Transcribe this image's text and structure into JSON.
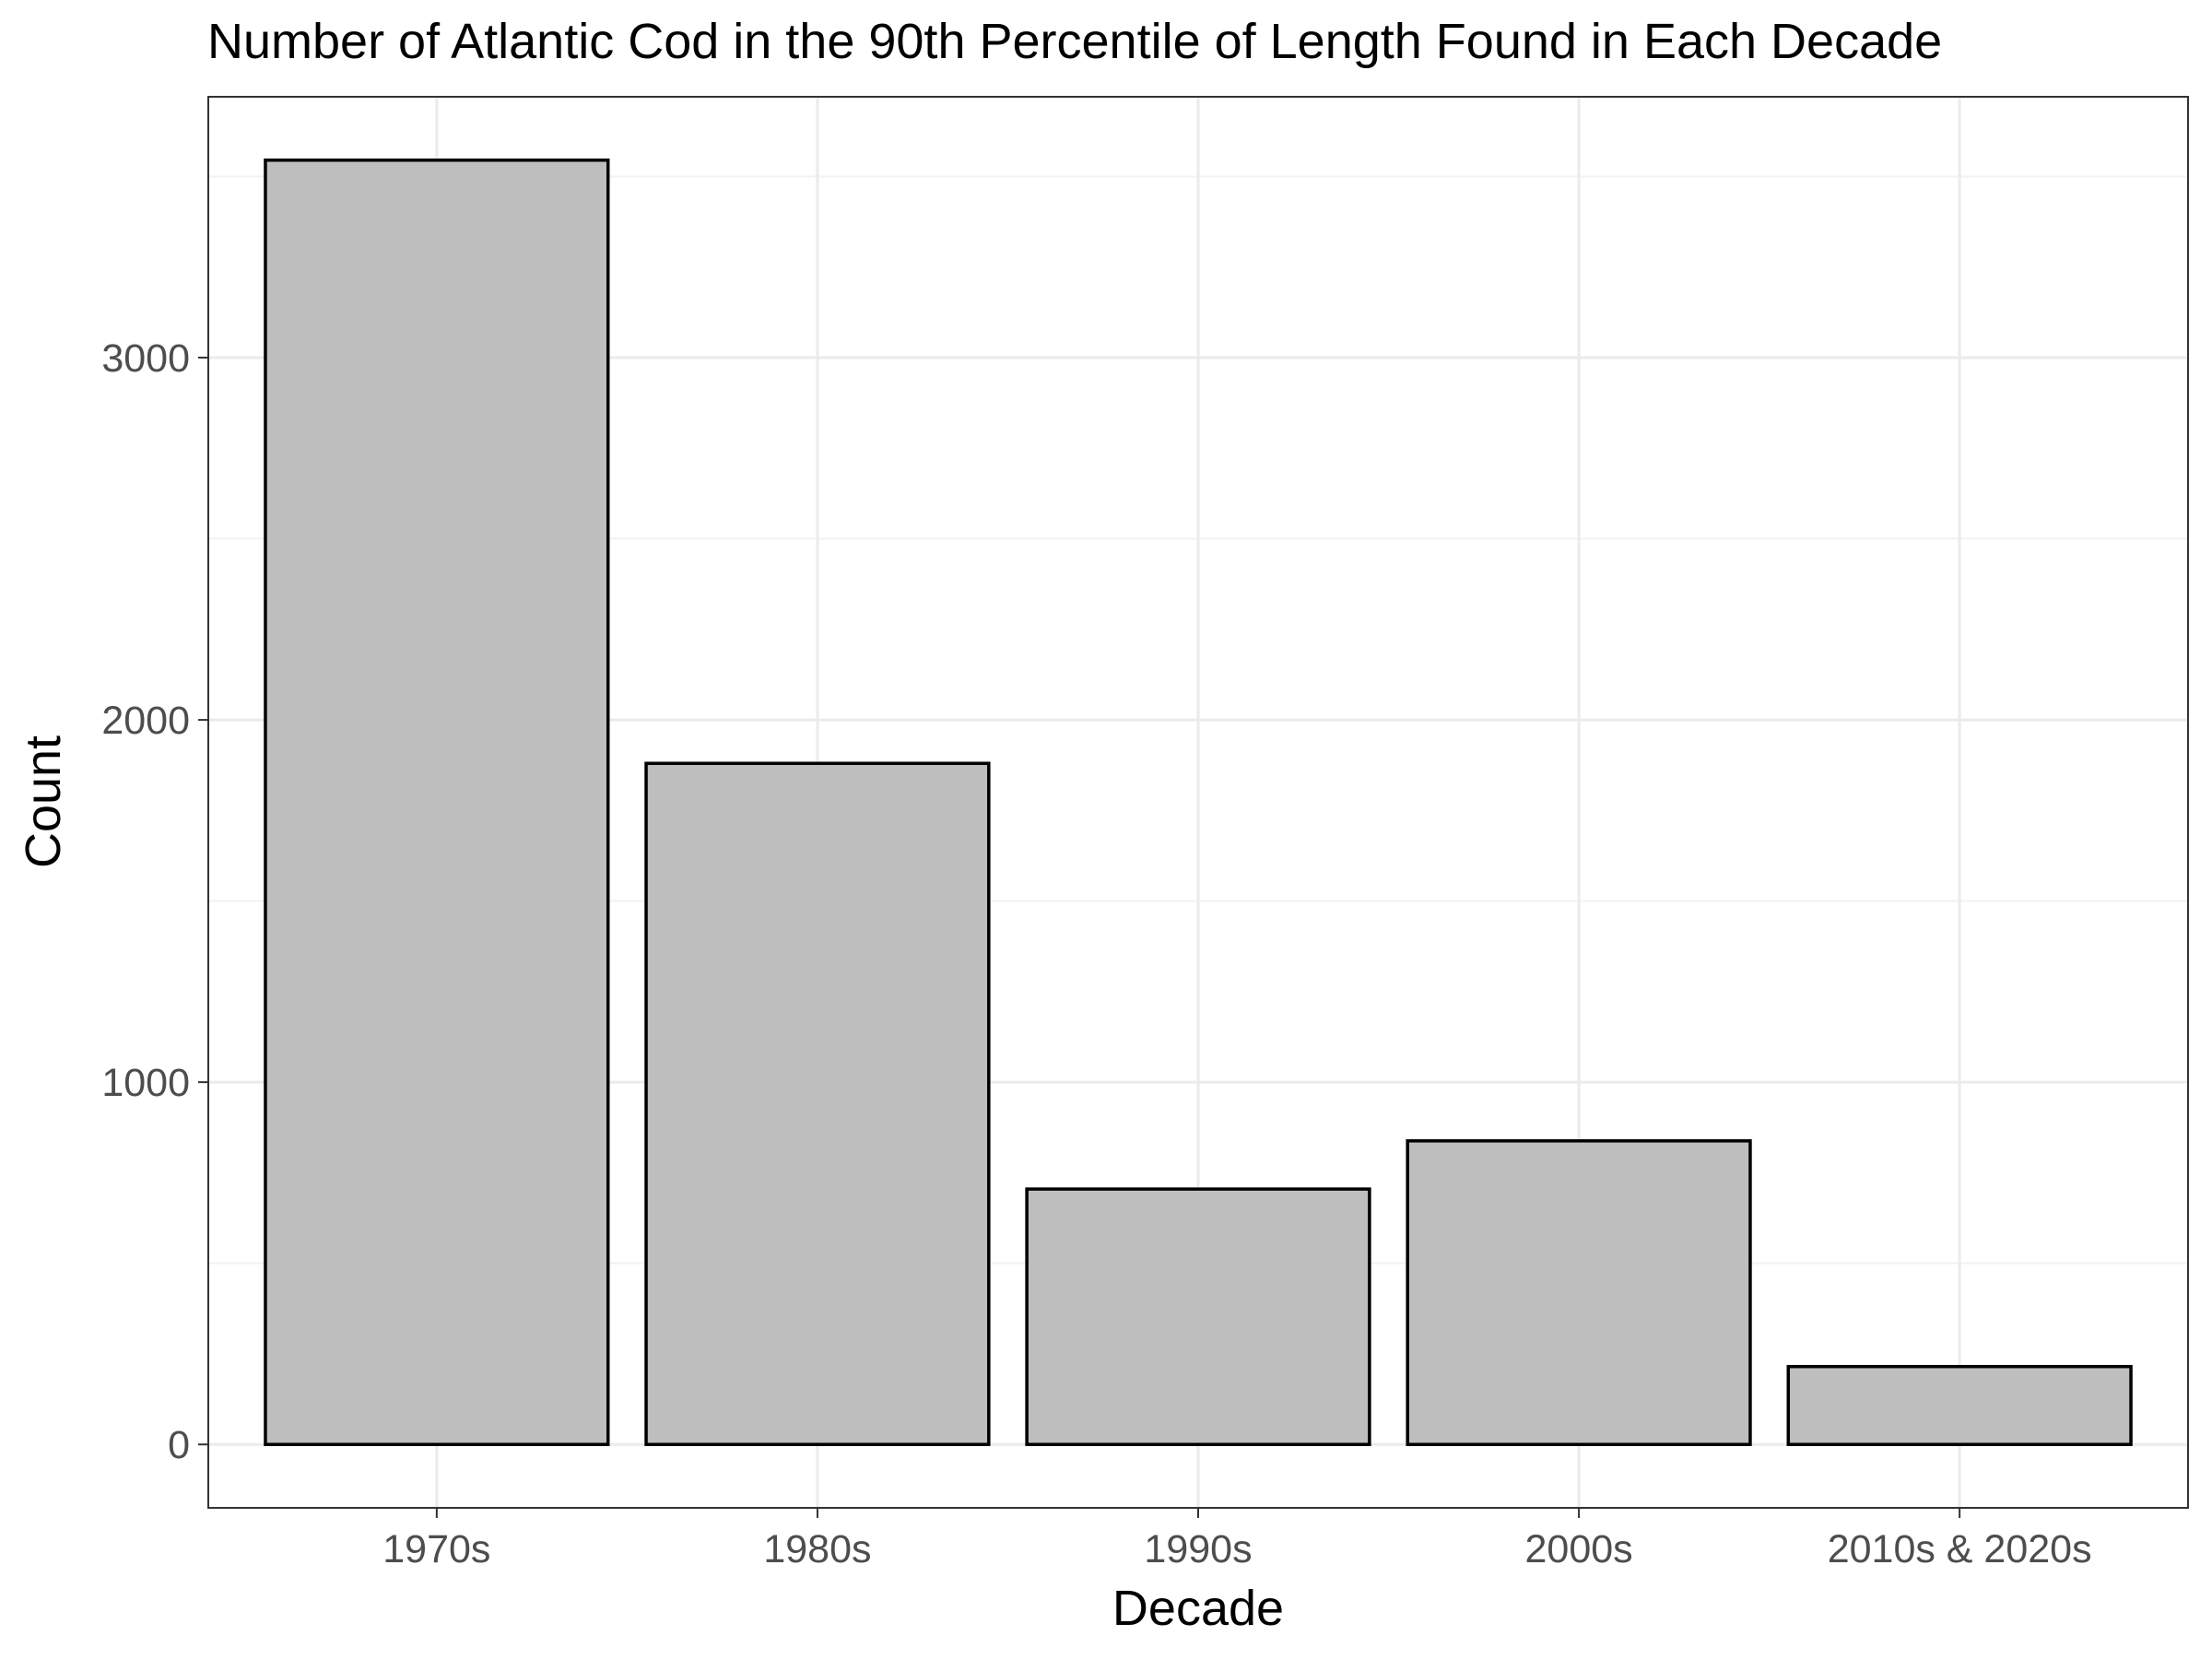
{
  "chart_data": {
    "type": "bar",
    "title": "Number of Atlantic Cod in the 90th Percentile of Length Found in Each Decade",
    "xlabel": "Decade",
    "ylabel": "Count",
    "categories": [
      "1970s",
      "1980s",
      "1990s",
      "2000s",
      "2010s & 2020s"
    ],
    "values": [
      3545,
      1880,
      705,
      838,
      215
    ],
    "ylim": [
      -175,
      3720
    ],
    "yticks": [
      0,
      1000,
      2000,
      3000
    ],
    "yticks_minor": [
      500,
      1500,
      2500,
      3500
    ],
    "grid": true,
    "legend": "none",
    "colors": {
      "bar_fill": "#bebebe",
      "bar_stroke": "#000000",
      "grid_major": "#ebebeb",
      "grid_minor": "#f2f2f2",
      "panel_border": "#333333",
      "tick_label": "#4d4d4d"
    }
  }
}
